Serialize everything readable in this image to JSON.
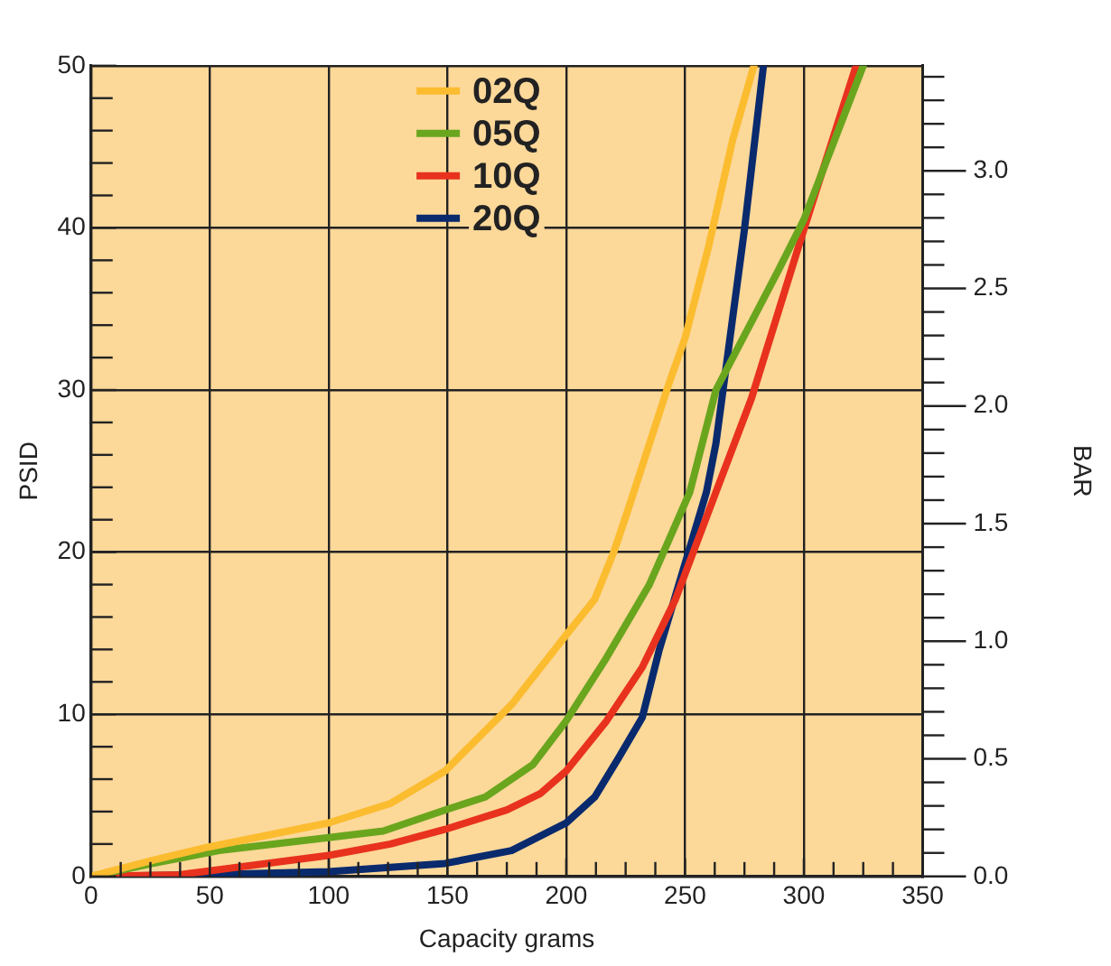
{
  "chart_data": {
    "type": "line",
    "xlabel": "Capacity grams",
    "ylabel": "PSID",
    "y2label": "BAR",
    "xlim": [
      0,
      350
    ],
    "ylim": [
      0,
      50
    ],
    "y2lim": [
      0,
      3.447
    ],
    "xticks": [
      0,
      {
        "value": 12.5,
        "label": null
      },
      {
        "value": 25,
        "label": null
      },
      {
        "value": 37.5,
        "label": null
      },
      50,
      {
        "value": 62.5,
        "label": null
      },
      {
        "value": 75,
        "label": null
      },
      {
        "value": 87.5,
        "label": null
      },
      100,
      {
        "value": 112.5,
        "label": null
      },
      {
        "value": 125,
        "label": null
      },
      {
        "value": 137.5,
        "label": null
      },
      150,
      {
        "value": 162.5,
        "label": null
      },
      {
        "value": 175,
        "label": null
      },
      {
        "value": 187.5,
        "label": null
      },
      200,
      {
        "value": 212.5,
        "label": null
      },
      {
        "value": 225,
        "label": null
      },
      {
        "value": 237.5,
        "label": null
      },
      250,
      {
        "value": 262.5,
        "label": null
      },
      {
        "value": 275,
        "label": null
      },
      {
        "value": 287.5,
        "label": null
      },
      300,
      {
        "value": 312.5,
        "label": null
      },
      {
        "value": 325,
        "label": null
      },
      {
        "value": 337.5,
        "label": null
      },
      350
    ],
    "yticks": [
      0,
      {
        "value": 2,
        "label": null
      },
      {
        "value": 4,
        "label": null
      },
      {
        "value": 6,
        "label": null
      },
      {
        "value": 8,
        "label": null
      },
      10,
      {
        "value": 12,
        "label": null
      },
      {
        "value": 14,
        "label": null
      },
      {
        "value": 16,
        "label": null
      },
      {
        "value": 18,
        "label": null
      },
      20,
      {
        "value": 22,
        "label": null
      },
      {
        "value": 24,
        "label": null
      },
      {
        "value": 26,
        "label": null
      },
      {
        "value": 28,
        "label": null
      },
      30,
      {
        "value": 32,
        "label": null
      },
      {
        "value": 34,
        "label": null
      },
      {
        "value": 36,
        "label": null
      },
      {
        "value": 38,
        "label": null
      },
      40,
      {
        "value": 42,
        "label": null
      },
      {
        "value": 44,
        "label": null
      },
      {
        "value": 46,
        "label": null
      },
      {
        "value": 48,
        "label": null
      },
      50
    ],
    "y2ticks": [
      {
        "value": 0,
        "label": "0.0"
      },
      {
        "value": 0.1,
        "label": null
      },
      {
        "value": 0.2,
        "label": null
      },
      {
        "value": 0.3,
        "label": null
      },
      {
        "value": 0.4,
        "label": null
      },
      {
        "value": 0.5,
        "label": "0.5"
      },
      {
        "value": 0.6,
        "label": null
      },
      {
        "value": 0.7,
        "label": null
      },
      {
        "value": 0.8,
        "label": null
      },
      {
        "value": 0.9,
        "label": null
      },
      {
        "value": 1,
        "label": "1.0"
      },
      {
        "value": 1.1,
        "label": null
      },
      {
        "value": 1.2,
        "label": null
      },
      {
        "value": 1.3,
        "label": null
      },
      {
        "value": 1.4,
        "label": null
      },
      {
        "value": 1.5,
        "label": "1.5"
      },
      {
        "value": 1.6,
        "label": null
      },
      {
        "value": 1.7,
        "label": null
      },
      {
        "value": 1.8,
        "label": null
      },
      {
        "value": 1.9,
        "label": null
      },
      {
        "value": 2,
        "label": "2.0"
      },
      {
        "value": 2.1,
        "label": null
      },
      {
        "value": 2.2,
        "label": null
      },
      {
        "value": 2.3,
        "label": null
      },
      {
        "value": 2.4,
        "label": null
      },
      {
        "value": 2.5,
        "label": "2.5"
      },
      {
        "value": 2.6,
        "label": null
      },
      {
        "value": 2.7,
        "label": null
      },
      {
        "value": 2.8,
        "label": null
      },
      {
        "value": 2.9,
        "label": null
      },
      {
        "value": 3,
        "label": "3.0"
      },
      {
        "value": 3.1,
        "label": null
      },
      {
        "value": 3.2,
        "label": null
      },
      {
        "value": 3.3,
        "label": null
      },
      {
        "value": 3.4,
        "label": null
      }
    ],
    "grid": true,
    "legend": "top",
    "marker": "none",
    "line_style": "solid",
    "series": [
      {
        "name": "02Q",
        "color": "#fbbc2f",
        "x": [
          0,
          26,
          49,
          100,
          126,
          149,
          177,
          200,
          212,
          220,
          226,
          243,
          250,
          260,
          270,
          279
        ],
        "values": [
          0,
          1.0,
          1.8,
          3.3,
          4.5,
          6.5,
          10.6,
          14.9,
          17.1,
          20,
          22.6,
          30.3,
          33.2,
          38.9,
          45.4,
          50
        ]
      },
      {
        "name": "05Q",
        "color": "#6aa51e",
        "x": [
          0,
          26,
          54,
          100,
          123,
          149,
          166,
          186,
          200,
          217,
          235,
          252,
          263,
          289,
          300,
          325
        ],
        "values": [
          0,
          0.8,
          1.6,
          2.4,
          2.8,
          4.1,
          4.9,
          6.9,
          9.6,
          13.5,
          18,
          23.7,
          30,
          37.3,
          40.5,
          50
        ]
      },
      {
        "name": "10Q",
        "color": "#e8321e",
        "x": [
          0,
          37,
          100,
          126,
          149,
          175,
          189,
          200,
          217,
          232,
          246,
          263,
          278,
          300,
          322
        ],
        "values": [
          0,
          0.1,
          1.3,
          2,
          2.9,
          4.1,
          5.1,
          6.5,
          9.6,
          12.9,
          17.1,
          23.7,
          29.5,
          39.9,
          50
        ]
      },
      {
        "name": "20Q",
        "color": "#0a2a6e",
        "x": [
          0,
          46,
          100,
          149,
          177,
          200,
          212,
          222,
          232,
          239,
          249,
          259,
          263,
          275,
          283
        ],
        "values": [
          0,
          0.1,
          0.3,
          0.8,
          1.6,
          3.3,
          4.9,
          7.3,
          9.8,
          13.9,
          18.8,
          23.7,
          26.7,
          39.9,
          50
        ]
      }
    ]
  }
}
